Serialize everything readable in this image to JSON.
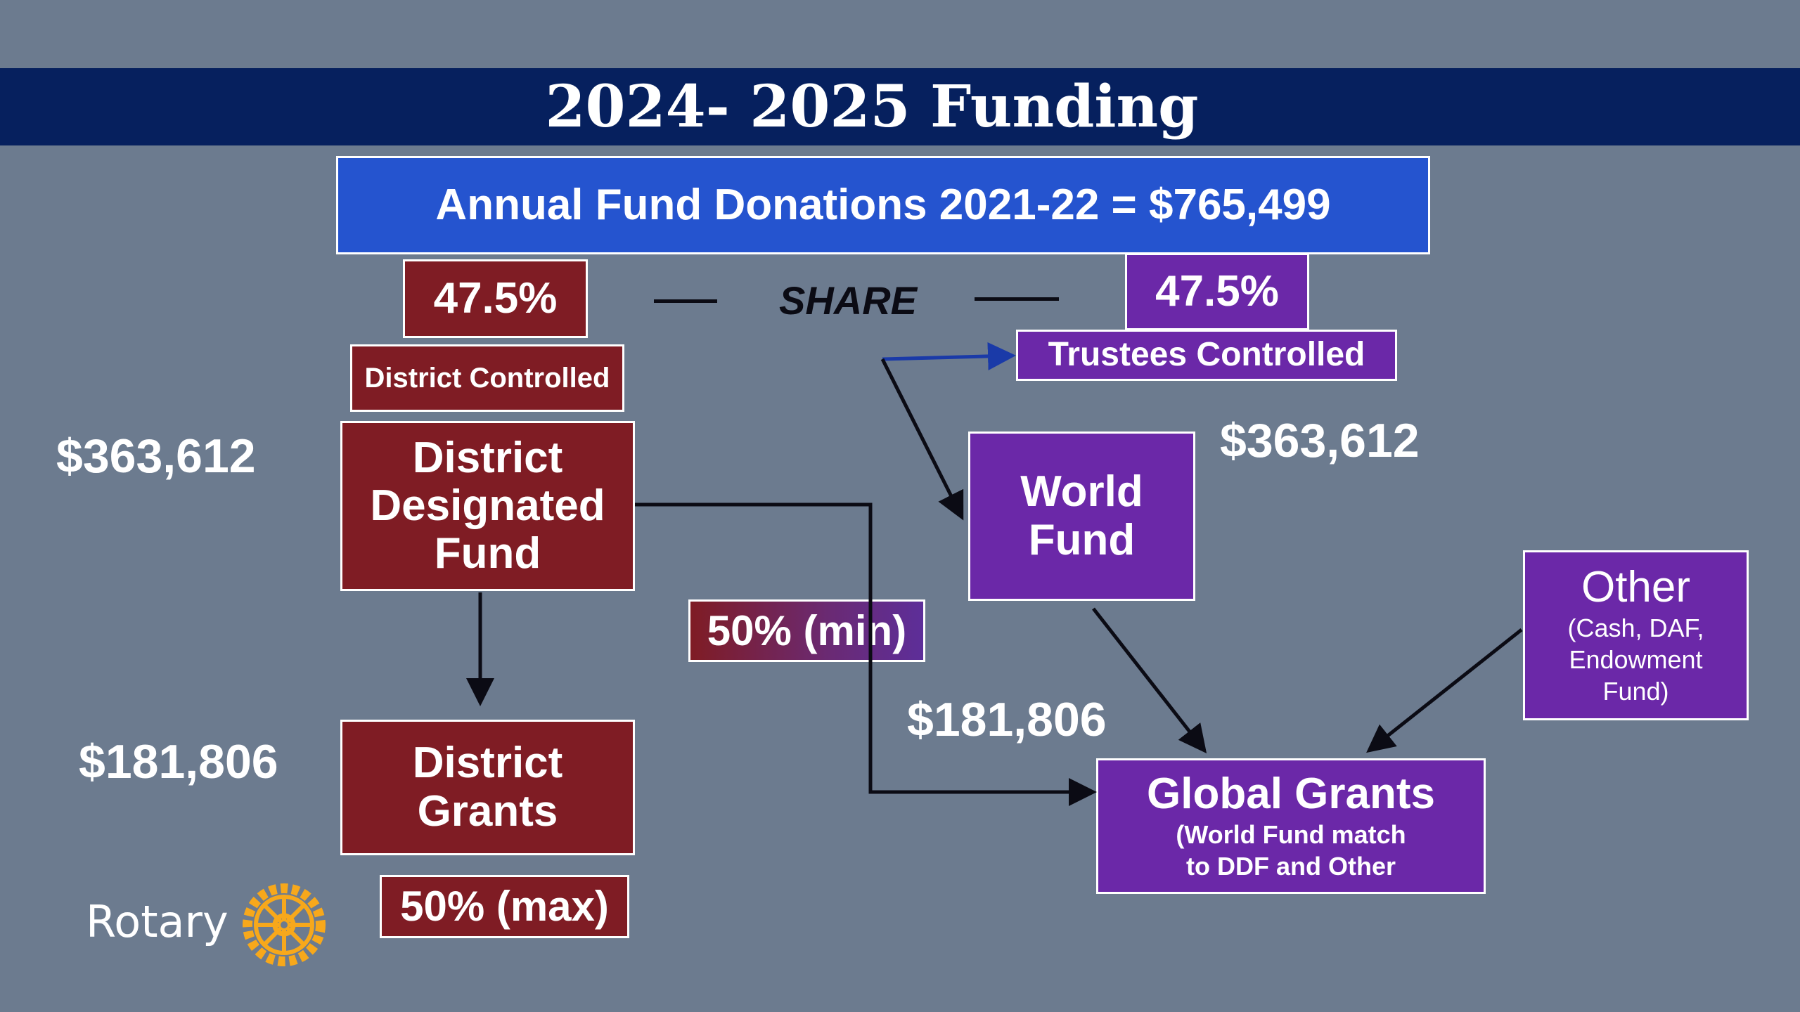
{
  "slide": {
    "title": "2024- 2025 Funding"
  },
  "nodes": {
    "annual": "Annual Fund Donations 2021-22 = $765,499",
    "share_left_pct": "47.5%",
    "share_right_pct": "47.5%",
    "share_label": "SHARE",
    "district_controlled": "District Controlled",
    "trustees_controlled": "Trustees Controlled",
    "ddf_line1": "District",
    "ddf_line2": "Designated",
    "ddf_line3": "Fund",
    "world_fund_line1": "World",
    "world_fund_line2": "Fund",
    "district_grants_line1": "District",
    "district_grants_line2": "Grants",
    "global_grants_title": "Global Grants",
    "global_grants_sub1": "(World Fund match",
    "global_grants_sub2": "to DDF and Other",
    "other_title": "Other",
    "other_sub1": "(Cash, DAF,",
    "other_sub2": "Endowment",
    "other_sub3": "Fund)",
    "min_pct": "50% (min)",
    "max_pct": "50% (max)"
  },
  "amounts": {
    "ddf": "$363,612",
    "world_fund": "$363,612",
    "district_grants": "$181,806",
    "global_grants": "$181,806"
  },
  "logo": {
    "text": "Rotary",
    "icon": "rotary-wheel-icon"
  },
  "colors": {
    "background": "#6c7b8f",
    "title_bar": "#06205e",
    "blue_box": "#2554cf",
    "district_red": "#7f1c24",
    "trustee_purple": "#6b28a8",
    "rotary_gold": "#f7a81b"
  }
}
